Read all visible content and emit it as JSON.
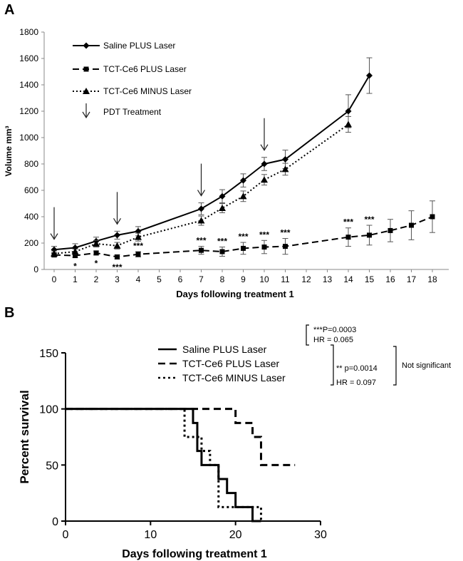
{
  "chart_data": [
    {
      "panel": "A",
      "type": "line",
      "title": "",
      "xlabel": "Days following treatment 1",
      "ylabel": "Volume mm³",
      "ylim": [
        0,
        1800
      ],
      "yticks": [
        "0",
        "200",
        "400",
        "600",
        "800",
        "1000",
        "1200",
        "1400",
        "1600",
        "1800"
      ],
      "xticks": [
        "0",
        "1",
        "2",
        "3",
        "4",
        "5",
        "6",
        "7",
        "8",
        "9",
        "10",
        "11",
        "12",
        "13",
        "14",
        "15",
        "16",
        "17",
        "18"
      ],
      "grid": false,
      "legend_position": "top-left",
      "series": [
        {
          "name": "Saline PLUS Laser",
          "style": "solid",
          "marker": "diamond",
          "x": [
            0,
            1,
            2,
            3,
            4,
            7,
            8,
            9,
            10,
            11,
            14,
            15
          ],
          "y": [
            150,
            165,
            215,
            260,
            290,
            460,
            555,
            675,
            800,
            835,
            1200,
            1470
          ],
          "err": [
            25,
            30,
            30,
            30,
            35,
            45,
            50,
            50,
            50,
            70,
            125,
            135
          ]
        },
        {
          "name": "TCT-Ce6 PLUS Laser",
          "style": "dashed",
          "marker": "square",
          "x": [
            0,
            1,
            2,
            3,
            4,
            7,
            8,
            9,
            10,
            11,
            14,
            15,
            16,
            17,
            18
          ],
          "y": [
            110,
            105,
            125,
            95,
            115,
            145,
            135,
            160,
            170,
            175,
            245,
            260,
            295,
            335,
            400
          ],
          "err": [
            15,
            15,
            15,
            15,
            20,
            30,
            35,
            45,
            50,
            60,
            70,
            75,
            85,
            110,
            120
          ]
        },
        {
          "name": "TCT-Ce6 MINUS Laser",
          "style": "dotted",
          "marker": "triangle",
          "x": [
            0,
            1,
            2,
            3,
            4,
            7,
            8,
            9,
            10,
            11,
            14
          ],
          "y": [
            120,
            135,
            195,
            180,
            245,
            370,
            465,
            555,
            680,
            760,
            1100
          ],
          "err": [
            20,
            20,
            25,
            25,
            30,
            35,
            35,
            40,
            40,
            45,
            60
          ]
        }
      ],
      "legend_extra": "PDT Treatment",
      "pdt_treatment_days": [
        0,
        3,
        7,
        10
      ],
      "significance": [
        {
          "x": 1,
          "label": "*",
          "where": "below"
        },
        {
          "x": 2,
          "label": "*",
          "where": "below"
        },
        {
          "x": 3,
          "label": "***",
          "where": "below"
        },
        {
          "x": 4,
          "label": "***",
          "where": "above"
        },
        {
          "x": 7,
          "label": "***",
          "where": "above"
        },
        {
          "x": 8,
          "label": "***",
          "where": "above"
        },
        {
          "x": 9,
          "label": "***",
          "where": "above"
        },
        {
          "x": 10,
          "label": "***",
          "where": "above"
        },
        {
          "x": 11,
          "label": "***",
          "where": "above"
        },
        {
          "x": 14,
          "label": "***",
          "where": "above"
        },
        {
          "x": 15,
          "label": "***",
          "where": "above"
        }
      ]
    },
    {
      "panel": "B",
      "type": "line",
      "title": "",
      "xlabel": "Days following treatment 1",
      "ylabel": "Percent survival",
      "xlim": [
        0,
        30
      ],
      "ylim": [
        0,
        150
      ],
      "xticks": [
        "0",
        "10",
        "20",
        "30"
      ],
      "yticks": [
        "0",
        "50",
        "100",
        "150"
      ],
      "legend_position": "top-right",
      "series": [
        {
          "name": "Saline PLUS Laser",
          "style": "solid",
          "steps": [
            [
              0,
              100
            ],
            [
              15,
              100
            ],
            [
              15,
              87.5
            ],
            [
              15.5,
              87.5
            ],
            [
              15.5,
              62.5
            ],
            [
              16,
              62.5
            ],
            [
              16,
              50
            ],
            [
              18,
              50
            ],
            [
              18,
              37.5
            ],
            [
              19,
              37.5
            ],
            [
              19,
              25
            ],
            [
              20,
              25
            ],
            [
              20,
              12.5
            ],
            [
              22,
              12.5
            ],
            [
              22,
              0
            ],
            [
              23,
              0
            ]
          ]
        },
        {
          "name": "TCT-Ce6 PLUS Laser",
          "style": "dashed",
          "steps": [
            [
              0,
              100
            ],
            [
              20,
              100
            ],
            [
              20,
              87.5
            ],
            [
              22,
              87.5
            ],
            [
              22,
              75
            ],
            [
              23,
              75
            ],
            [
              23,
              50
            ],
            [
              27,
              50
            ]
          ]
        },
        {
          "name": "TCT-Ce6 MINUS Laser",
          "style": "dotted",
          "steps": [
            [
              0,
              100
            ],
            [
              14,
              100
            ],
            [
              14,
              75
            ],
            [
              16,
              75
            ],
            [
              16,
              62.5
            ],
            [
              17,
              62.5
            ],
            [
              17,
              50
            ],
            [
              18,
              50
            ],
            [
              18,
              12.5
            ],
            [
              23,
              12.5
            ],
            [
              23,
              0
            ]
          ]
        }
      ],
      "annotations": {
        "stat1_line1": "***P=0.0003",
        "stat1_line2": "HR = 0.065",
        "stat2_line1": "** p=0.0014",
        "stat2_line2": "HR = 0.097",
        "ns": "Not significant"
      }
    }
  ],
  "labels": {
    "panel_a": "A",
    "panel_b": "B"
  }
}
